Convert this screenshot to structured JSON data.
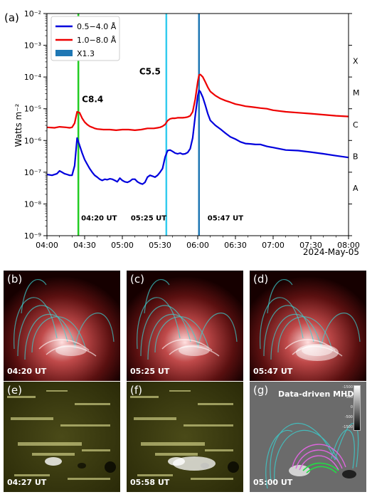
{
  "chart_data": {
    "type": "line",
    "panel_label": "(a)",
    "ylabel": "Watts m⁻²",
    "xlabel": "2024-May-05",
    "yscale": "log",
    "ylim": [
      1e-09,
      0.01
    ],
    "y_tick_labels": [
      "10⁻⁹",
      "10⁻⁸",
      "10⁻⁷",
      "10⁻⁶",
      "10⁻⁵",
      "10⁻⁴",
      "10⁻³",
      "10⁻²"
    ],
    "x_ticks": [
      "04:00",
      "04:30",
      "05:00",
      "05:30",
      "06:00",
      "06:30",
      "07:00",
      "07:30",
      "08:00"
    ],
    "flare_classes": [
      "A",
      "B",
      "C",
      "M",
      "X"
    ],
    "legend_position": "top-left",
    "grid": false,
    "series": [
      {
        "name": "0.5−4.0 Å",
        "color": "#0000dd",
        "x": [
          "04:00",
          "04:04",
          "04:08",
          "04:10",
          "04:12",
          "04:14",
          "04:16",
          "04:18",
          "04:20",
          "04:22",
          "04:24",
          "04:26",
          "04:28",
          "04:30",
          "04:32",
          "04:34",
          "04:36",
          "04:38",
          "04:40",
          "04:42",
          "04:44",
          "04:46",
          "04:48",
          "04:50",
          "04:52",
          "04:54",
          "04:56",
          "04:58",
          "05:00",
          "05:02",
          "05:04",
          "05:06",
          "05:08",
          "05:10",
          "05:12",
          "05:14",
          "05:16",
          "05:18",
          "05:20",
          "05:22",
          "05:24",
          "05:26",
          "05:28",
          "05:30",
          "05:32",
          "05:34",
          "05:36",
          "05:38",
          "05:40",
          "05:42",
          "05:44",
          "05:46",
          "05:48",
          "05:50",
          "05:52",
          "05:54",
          "05:56",
          "05:58",
          "06:00",
          "06:01",
          "06:02",
          "06:04",
          "06:06",
          "06:08",
          "06:10",
          "06:14",
          "06:18",
          "06:22",
          "06:26",
          "06:30",
          "06:34",
          "06:38",
          "06:42",
          "06:46",
          "06:50",
          "06:55",
          "07:00",
          "07:05",
          "07:10",
          "07:20",
          "07:30",
          "07:40",
          "07:50",
          "08:00"
        ],
        "y": [
          8.5e-08,
          8e-08,
          9e-08,
          1.1e-07,
          1e-07,
          9e-08,
          8.5e-08,
          8e-08,
          8e-08,
          1.6e-07,
          1.2e-06,
          7e-07,
          4e-07,
          2.5e-07,
          1.8e-07,
          1.3e-07,
          1e-07,
          8e-08,
          7e-08,
          6e-08,
          5.5e-08,
          6e-08,
          5.8e-08,
          6.2e-08,
          6e-08,
          5.5e-08,
          5e-08,
          6.5e-08,
          5.5e-08,
          5e-08,
          4.8e-08,
          5.2e-08,
          6e-08,
          6e-08,
          5e-08,
          4.5e-08,
          4.2e-08,
          4.8e-08,
          7e-08,
          8e-08,
          7.5e-08,
          7e-08,
          8e-08,
          1e-07,
          1.3e-07,
          3e-07,
          4.8e-07,
          5e-07,
          4.5e-07,
          4e-07,
          3.8e-07,
          4e-07,
          3.7e-07,
          3.8e-07,
          4.2e-07,
          5.5e-07,
          1.2e-06,
          6e-06,
          2.5e-05,
          3.8e-05,
          3.5e-05,
          2.3e-05,
          1.3e-05,
          7e-06,
          4.3e-06,
          3e-06,
          2.3e-06,
          1.7e-06,
          1.3e-06,
          1.1e-06,
          9e-07,
          8e-07,
          7.8e-07,
          7.5e-07,
          7.5e-07,
          6.5e-07,
          6e-07,
          5.5e-07,
          5e-07,
          4.8e-07,
          4.3e-07,
          3.8e-07,
          3.3e-07,
          2.9e-07
        ]
      },
      {
        "name": "1.0−8.0 Å",
        "color": "#ee0000",
        "x": [
          "04:00",
          "04:06",
          "04:10",
          "04:15",
          "04:18",
          "04:20",
          "04:22",
          "04:24",
          "04:26",
          "04:28",
          "04:30",
          "04:32",
          "04:34",
          "04:36",
          "04:38",
          "04:40",
          "04:45",
          "04:50",
          "04:55",
          "05:00",
          "05:05",
          "05:10",
          "05:15",
          "05:20",
          "05:25",
          "05:28",
          "05:30",
          "05:32",
          "05:34",
          "05:36",
          "05:38",
          "05:40",
          "05:42",
          "05:44",
          "05:46",
          "05:48",
          "05:50",
          "05:52",
          "05:54",
          "05:56",
          "05:58",
          "06:00",
          "06:01",
          "06:02",
          "06:04",
          "06:06",
          "06:08",
          "06:10",
          "06:14",
          "06:18",
          "06:22",
          "06:26",
          "06:30",
          "06:34",
          "06:38",
          "06:42",
          "06:46",
          "06:50",
          "06:55",
          "07:00",
          "07:10",
          "07:20",
          "07:30",
          "07:40",
          "07:50",
          "08:00"
        ],
        "y": [
          2.6e-06,
          2.5e-06,
          2.7e-06,
          2.6e-06,
          2.5e-06,
          2.6e-06,
          3.5e-06,
          8e-06,
          7.5e-06,
          5e-06,
          3.8e-06,
          3.2e-06,
          2.8e-06,
          2.6e-06,
          2.4e-06,
          2.3e-06,
          2.2e-06,
          2.2e-06,
          2.1e-06,
          2.2e-06,
          2.2e-06,
          2.1e-06,
          2.2e-06,
          2.4e-06,
          2.4e-06,
          2.5e-06,
          2.6e-06,
          2.8e-06,
          3.2e-06,
          4.2e-06,
          4.8e-06,
          5e-06,
          5e-06,
          5.2e-06,
          5.2e-06,
          5.2e-06,
          5.3e-06,
          5.5e-06,
          6e-06,
          8e-06,
          2e-05,
          7e-05,
          0.000115,
          0.00012,
          0.0001,
          7e-05,
          4.8e-05,
          3.5e-05,
          2.6e-05,
          2.1e-05,
          1.8e-05,
          1.6e-05,
          1.4e-05,
          1.3e-05,
          1.2e-05,
          1.15e-05,
          1.1e-05,
          1.05e-05,
          1e-05,
          9e-06,
          8e-06,
          7.5e-06,
          7e-06,
          6.5e-06,
          6e-06,
          5.7e-06
        ]
      }
    ],
    "legend_extra": {
      "name": "X1.3",
      "color": "#1f77b4"
    },
    "vlines": [
      {
        "time": "04:25",
        "color": "#22cc22",
        "label": "04:20 UT",
        "flare": "C8.4"
      },
      {
        "time": "05:35",
        "color": "#33ccee",
        "label": "05:25 UT",
        "flare": "C5.5"
      },
      {
        "time": "06:01",
        "color": "#1f77b4",
        "label": "05:47 UT",
        "flare": ""
      }
    ]
  },
  "panels": [
    {
      "label": "(b)",
      "time": "04:20 UT",
      "kind": "aia"
    },
    {
      "label": "(c)",
      "time": "05:25 UT",
      "kind": "aia"
    },
    {
      "label": "(d)",
      "time": "05:47 UT",
      "kind": "aia"
    },
    {
      "label": "(e)",
      "time": "04:27 UT",
      "kind": "hmi"
    },
    {
      "label": "(f)",
      "time": "05:58 UT",
      "kind": "hmi"
    },
    {
      "label": "(g)",
      "time": "05:00 UT",
      "kind": "mhd",
      "title": "Data-driven MHD",
      "colorbar_ticks": [
        "-1500",
        "500",
        "0",
        "-500",
        "-1500"
      ]
    }
  ],
  "colors": {
    "aia_bg": "#1a0000",
    "aia_red": "#c83232",
    "aia_cyan": "#3cd2d2",
    "hmi_yellow": "#f0f0a0",
    "mhd_pink": "#dd66dd",
    "mhd_green": "#22dd44"
  }
}
